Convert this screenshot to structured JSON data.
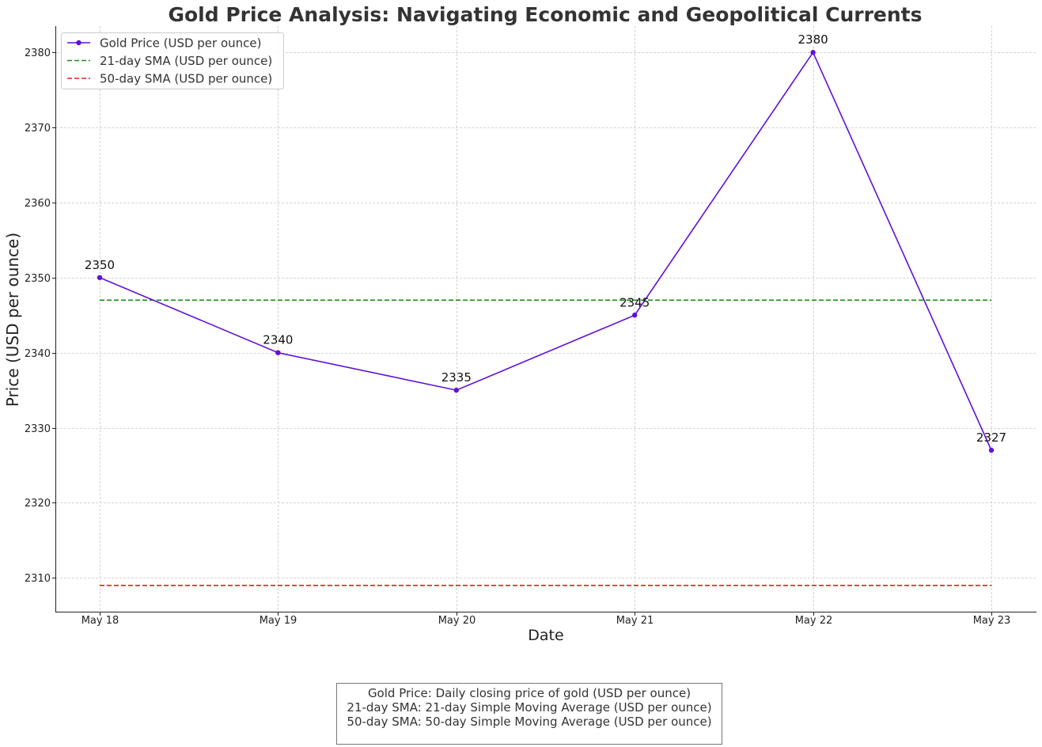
{
  "chart_data": {
    "type": "line",
    "title": "Gold Price Analysis: Navigating Economic and Geopolitical Currents",
    "xlabel": "Date",
    "ylabel": "Price (USD per ounce)",
    "categories": [
      "May 18",
      "May 19",
      "May 20",
      "May 21",
      "May 22",
      "May 23"
    ],
    "yticks": [
      2310,
      2320,
      2330,
      2340,
      2350,
      2360,
      2370,
      2380
    ],
    "ylim": [
      2305.5,
      2383.5
    ],
    "grid": true,
    "legend_position": "top-left",
    "series": [
      {
        "name": "Gold Price (USD per ounce)",
        "values": [
          2350,
          2340,
          2335,
          2345,
          2380,
          2327
        ],
        "data_labels": [
          "2350",
          "2340",
          "2335",
          "2345",
          "2380",
          "2327"
        ],
        "color": "#6010d8",
        "style": "solid-markers"
      },
      {
        "name": "21-day SMA (USD per ounce)",
        "values": [
          2347,
          2347,
          2347,
          2347,
          2347,
          2347
        ],
        "color": "#1a8c1a",
        "style": "dashed"
      },
      {
        "name": "50-day SMA (USD per ounce)",
        "values": [
          2309,
          2309,
          2309,
          2309,
          2309,
          2309
        ],
        "color": "#e0201a",
        "style": "dashed"
      }
    ]
  },
  "footnote": {
    "line1": "Gold Price: Daily closing price of gold (USD per ounce)",
    "line2": "21-day SMA: 21-day Simple Moving Average (USD per ounce)",
    "line3": "50-day SMA: 50-day Simple Moving Average (USD per ounce)"
  }
}
